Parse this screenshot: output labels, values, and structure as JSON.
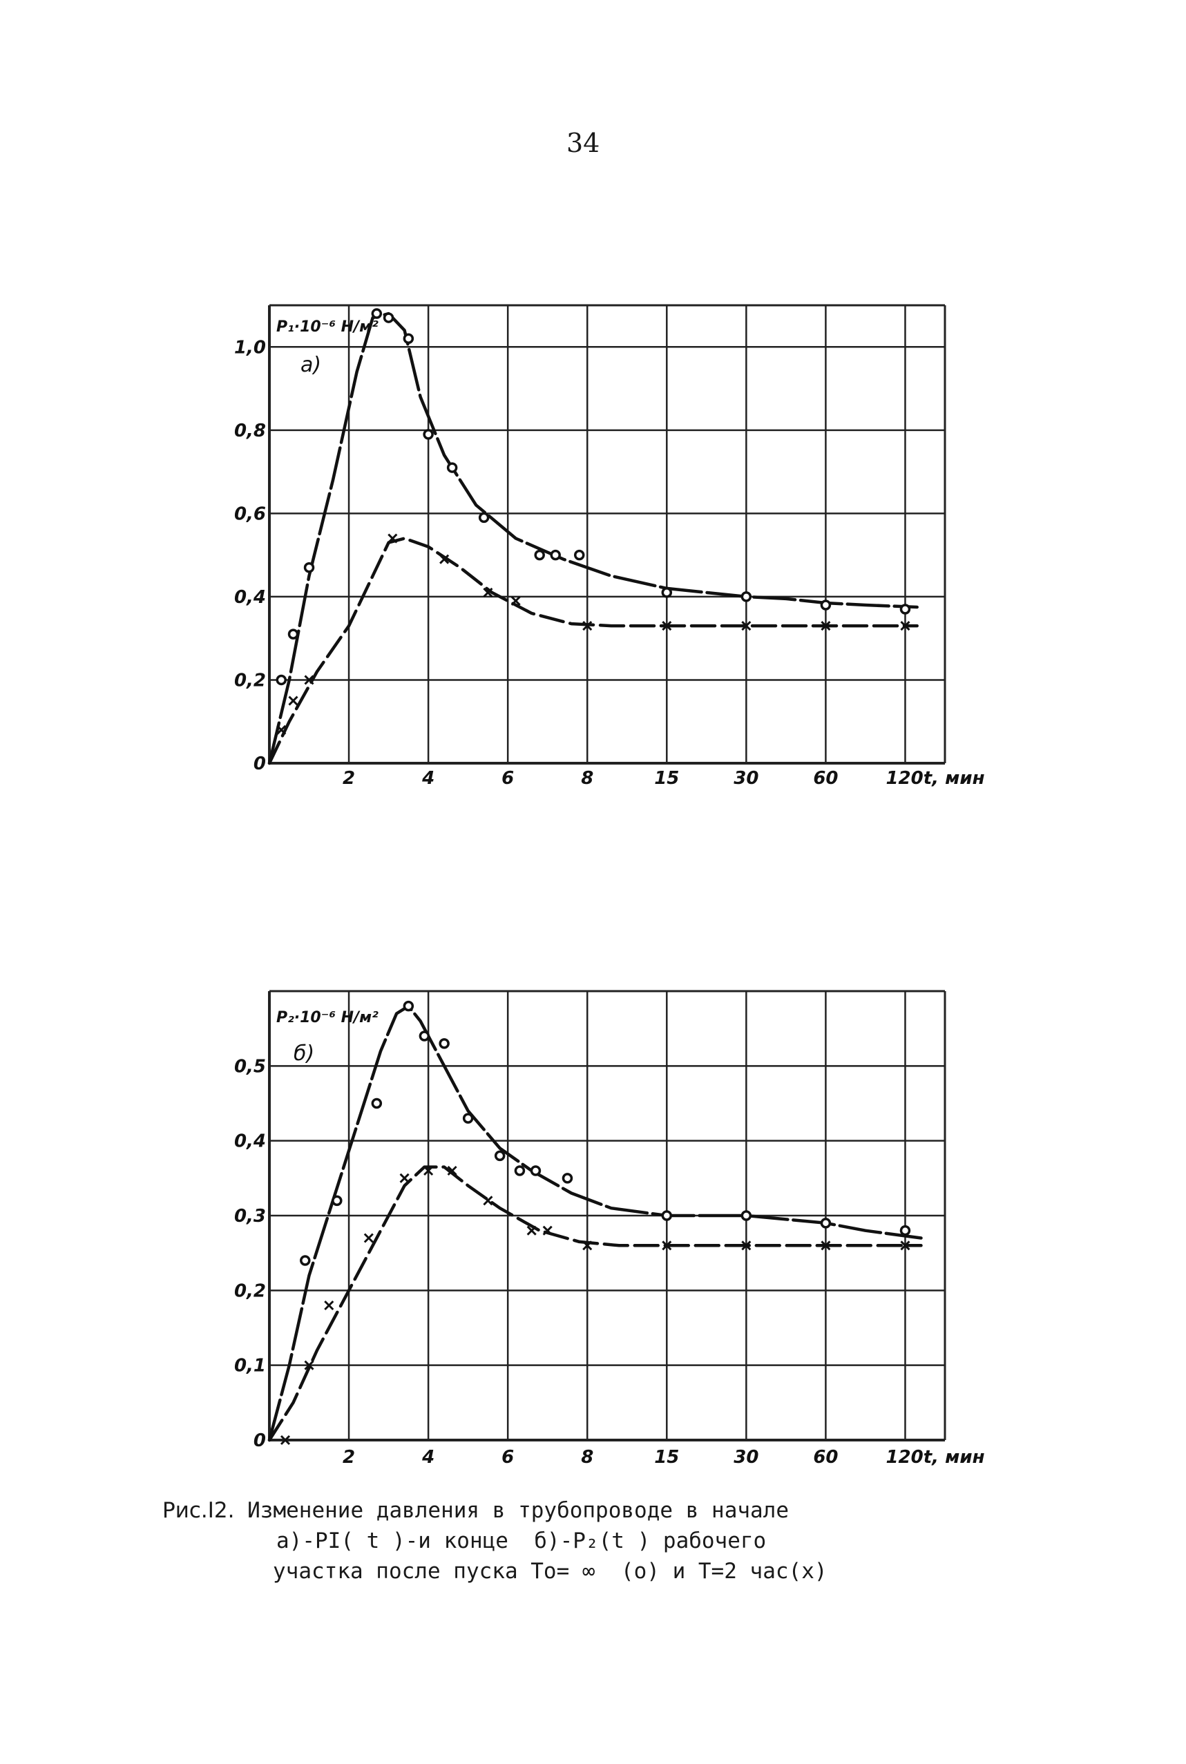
{
  "page_number": "34",
  "caption": {
    "label": "Рис.I2.",
    "line1": "Изменение давления в трубопроводе в начале",
    "line2": "а)-PI( t )-и конце  б)-P₂(t ) рабочего",
    "line3": "участка после пуска То= ∞  (о) и Т=2 час(х)"
  },
  "chart_data": [
    {
      "type": "line",
      "panel_label": "а)",
      "ylabel": "P₁·10⁻⁶ Н/м²",
      "xlabel": "t, мин",
      "x_tick_labels": [
        "2",
        "4",
        "6",
        "8",
        "15",
        "30",
        "60",
        "120t, мин"
      ],
      "y_tick_labels": [
        "0",
        "0,2",
        "0,4",
        "0,6",
        "0,8",
        "1,0"
      ],
      "ylim": [
        0,
        1.1
      ],
      "grid": true,
      "series": [
        {
          "marker": "o",
          "points": [
            [
              0.3,
              0.2
            ],
            [
              0.6,
              0.31
            ],
            [
              1.0,
              0.47
            ],
            [
              2.7,
              1.08
            ],
            [
              3.0,
              1.07
            ],
            [
              3.5,
              1.02
            ],
            [
              4.0,
              0.79
            ],
            [
              4.6,
              0.71
            ],
            [
              5.4,
              0.59
            ],
            [
              6.8,
              0.5
            ],
            [
              7.2,
              0.5
            ],
            [
              7.8,
              0.5
            ],
            [
              10.0,
              0.41
            ],
            [
              12.0,
              0.4
            ],
            [
              14.0,
              0.38
            ],
            [
              16.0,
              0.37
            ]
          ],
          "curve": [
            [
              0,
              0
            ],
            [
              0.5,
              0.2
            ],
            [
              1.0,
              0.45
            ],
            [
              1.6,
              0.68
            ],
            [
              2.2,
              0.94
            ],
            [
              2.6,
              1.07
            ],
            [
              3.0,
              1.08
            ],
            [
              3.4,
              1.04
            ],
            [
              3.8,
              0.88
            ],
            [
              4.4,
              0.74
            ],
            [
              5.2,
              0.62
            ],
            [
              6.2,
              0.54
            ],
            [
              7.4,
              0.49
            ],
            [
              8.6,
              0.45
            ],
            [
              10.0,
              0.42
            ],
            [
              11.0,
              0.41
            ],
            [
              12.0,
              0.4
            ],
            [
              13.0,
              0.395
            ],
            [
              14.0,
              0.385
            ],
            [
              15.0,
              0.38
            ],
            [
              16.3,
              0.375
            ]
          ]
        },
        {
          "marker": "x",
          "points": [
            [
              0.3,
              0.08
            ],
            [
              0.6,
              0.15
            ],
            [
              1.0,
              0.2
            ],
            [
              3.1,
              0.54
            ],
            [
              4.4,
              0.49
            ],
            [
              5.5,
              0.41
            ],
            [
              6.2,
              0.39
            ],
            [
              8.0,
              0.33
            ],
            [
              10.0,
              0.33
            ],
            [
              12.0,
              0.33
            ],
            [
              14.0,
              0.33
            ],
            [
              16.0,
              0.33
            ]
          ],
          "curve": [
            [
              0,
              0
            ],
            [
              0.5,
              0.1
            ],
            [
              1.2,
              0.22
            ],
            [
              2.0,
              0.33
            ],
            [
              2.6,
              0.45
            ],
            [
              3.0,
              0.53
            ],
            [
              3.4,
              0.54
            ],
            [
              4.0,
              0.52
            ],
            [
              4.8,
              0.47
            ],
            [
              5.6,
              0.41
            ],
            [
              6.6,
              0.36
            ],
            [
              7.6,
              0.335
            ],
            [
              8.6,
              0.33
            ],
            [
              10.0,
              0.33
            ],
            [
              12.0,
              0.33
            ],
            [
              14.0,
              0.33
            ],
            [
              16.3,
              0.33
            ]
          ]
        }
      ]
    },
    {
      "type": "line",
      "panel_label": "б)",
      "ylabel": "P₂·10⁻⁶ Н/м²",
      "xlabel": "t, мин",
      "x_tick_labels": [
        "2",
        "4",
        "6",
        "8",
        "15",
        "30",
        "60",
        "120t, мин"
      ],
      "y_tick_labels": [
        "0",
        "0,1",
        "0,2",
        "0,3",
        "0,4",
        "0,5"
      ],
      "ylim": [
        0,
        0.6
      ],
      "grid": true,
      "series": [
        {
          "marker": "o",
          "points": [
            [
              0.9,
              0.24
            ],
            [
              1.7,
              0.32
            ],
            [
              2.7,
              0.45
            ],
            [
              3.5,
              0.58
            ],
            [
              3.9,
              0.54
            ],
            [
              4.4,
              0.53
            ],
            [
              5.0,
              0.43
            ],
            [
              5.8,
              0.38
            ],
            [
              6.3,
              0.36
            ],
            [
              6.7,
              0.36
            ],
            [
              7.5,
              0.35
            ],
            [
              10.0,
              0.3
            ],
            [
              12.0,
              0.3
            ],
            [
              14.0,
              0.29
            ],
            [
              16.0,
              0.28
            ]
          ],
          "curve": [
            [
              0,
              0
            ],
            [
              0.5,
              0.1
            ],
            [
              1.0,
              0.22
            ],
            [
              1.6,
              0.32
            ],
            [
              2.2,
              0.42
            ],
            [
              2.8,
              0.52
            ],
            [
              3.2,
              0.57
            ],
            [
              3.5,
              0.58
            ],
            [
              3.8,
              0.56
            ],
            [
              4.4,
              0.5
            ],
            [
              5.0,
              0.44
            ],
            [
              5.8,
              0.39
            ],
            [
              6.6,
              0.36
            ],
            [
              7.6,
              0.33
            ],
            [
              8.6,
              0.31
            ],
            [
              10.0,
              0.3
            ],
            [
              12.0,
              0.3
            ],
            [
              13.0,
              0.295
            ],
            [
              14.0,
              0.29
            ],
            [
              15.0,
              0.28
            ],
            [
              16.4,
              0.27
            ]
          ]
        },
        {
          "marker": "x",
          "points": [
            [
              0.4,
              0.0
            ],
            [
              1.0,
              0.1
            ],
            [
              1.5,
              0.18
            ],
            [
              2.5,
              0.27
            ],
            [
              3.4,
              0.35
            ],
            [
              4.0,
              0.36
            ],
            [
              4.6,
              0.36
            ],
            [
              5.5,
              0.32
            ],
            [
              6.6,
              0.28
            ],
            [
              7.0,
              0.28
            ],
            [
              8.0,
              0.26
            ],
            [
              10.0,
              0.26
            ],
            [
              12.0,
              0.26
            ],
            [
              14.0,
              0.26
            ],
            [
              16.0,
              0.26
            ]
          ],
          "curve": [
            [
              0,
              0
            ],
            [
              0.6,
              0.05
            ],
            [
              1.2,
              0.12
            ],
            [
              2.0,
              0.2
            ],
            [
              2.8,
              0.28
            ],
            [
              3.4,
              0.34
            ],
            [
              3.9,
              0.365
            ],
            [
              4.4,
              0.365
            ],
            [
              5.0,
              0.34
            ],
            [
              5.8,
              0.31
            ],
            [
              6.8,
              0.28
            ],
            [
              7.8,
              0.265
            ],
            [
              8.8,
              0.26
            ],
            [
              10.0,
              0.26
            ],
            [
              12.0,
              0.26
            ],
            [
              14.0,
              0.26
            ],
            [
              16.4,
              0.26
            ]
          ]
        }
      ]
    }
  ]
}
